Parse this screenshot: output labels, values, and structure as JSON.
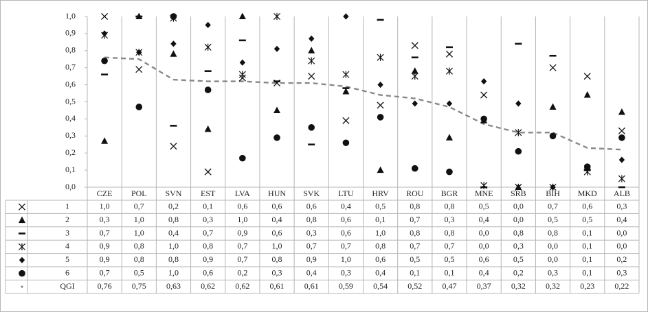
{
  "chart_data": {
    "type": "scatter",
    "categories": [
      "CZE",
      "POL",
      "SVN",
      "EST",
      "LVA",
      "HUN",
      "SVK",
      "LTU",
      "HRV",
      "ROU",
      "BGR",
      "MNE",
      "SRB",
      "BIH",
      "MKD",
      "ALB"
    ],
    "ylim": [
      0,
      1.0
    ],
    "yticks": [
      "0,0",
      "0,1",
      "0,2",
      "0,3",
      "0,4",
      "0,5",
      "0,6",
      "0,7",
      "0,8",
      "0,9",
      "1,0"
    ],
    "grid": "vertical category separators",
    "legend": "data table below chart",
    "series": [
      {
        "name": "1",
        "marker": "x",
        "values": [
          1.0,
          0.69,
          0.24,
          0.09,
          0.64,
          0.61,
          0.65,
          0.39,
          0.48,
          0.83,
          0.78,
          0.54,
          0.0,
          0.7,
          0.65,
          0.33
        ],
        "table": [
          "1,0",
          "0,7",
          "0,2",
          "0,1",
          "0,6",
          "0,6",
          "0,6",
          "0,4",
          "0,5",
          "0,8",
          "0,8",
          "0,5",
          "0,0",
          "0,7",
          "0,6",
          "0,3"
        ]
      },
      {
        "name": "2",
        "marker": "triangle",
        "values": [
          0.27,
          1.0,
          0.78,
          0.34,
          1.0,
          0.45,
          0.8,
          0.56,
          0.1,
          0.68,
          0.29,
          0.39,
          0.0,
          0.47,
          0.54,
          0.44
        ],
        "table": [
          "0,3",
          "1,0",
          "0,8",
          "0,3",
          "1,0",
          "0,4",
          "0,8",
          "0,6",
          "0,1",
          "0,7",
          "0,3",
          "0,4",
          "0,0",
          "0,5",
          "0,5",
          "0,4"
        ]
      },
      {
        "name": "3",
        "marker": "dash",
        "values": [
          0.66,
          1.0,
          0.36,
          0.68,
          0.86,
          0.62,
          0.25,
          0.58,
          0.98,
          0.76,
          0.82,
          0.0,
          0.84,
          0.77,
          0.1,
          0.0
        ],
        "table": [
          "0,7",
          "1,0",
          "0,4",
          "0,7",
          "0,9",
          "0,6",
          "0,3",
          "0,6",
          "1,0",
          "0,8",
          "0,8",
          "0,0",
          "0,8",
          "0,8",
          "0,1",
          "0,0"
        ]
      },
      {
        "name": "4",
        "marker": "star",
        "values": [
          0.89,
          0.79,
          0.99,
          0.82,
          0.66,
          1.0,
          0.74,
          0.66,
          0.76,
          0.65,
          0.68,
          0.01,
          0.32,
          0.0,
          0.09,
          0.05
        ],
        "table": [
          "0,9",
          "0,8",
          "1,0",
          "0,8",
          "0,7",
          "1,0",
          "0,7",
          "0,7",
          "0,8",
          "0,7",
          "0,7",
          "0,0",
          "0,3",
          "0,0",
          "0,1",
          "0,0"
        ]
      },
      {
        "name": "5",
        "marker": "diamond",
        "values": [
          0.9,
          0.79,
          0.84,
          0.95,
          0.73,
          0.81,
          0.87,
          1.0,
          0.6,
          0.49,
          0.49,
          0.62,
          0.49,
          0.0,
          0.11,
          0.16
        ],
        "table": [
          "0,9",
          "0,8",
          "0,8",
          "0,9",
          "0,7",
          "0,8",
          "0,9",
          "1,0",
          "0,6",
          "0,5",
          "0,5",
          "0,6",
          "0,5",
          "0,0",
          "0,1",
          "0,2"
        ]
      },
      {
        "name": "6",
        "marker": "circle",
        "values": [
          0.74,
          0.47,
          1.0,
          0.57,
          0.17,
          0.29,
          0.35,
          0.26,
          0.41,
          0.11,
          0.09,
          0.4,
          0.21,
          0.3,
          0.12,
          0.29
        ],
        "table": [
          "0,7",
          "0,5",
          "1,0",
          "0,6",
          "0,2",
          "0,3",
          "0,4",
          "0,3",
          "0,4",
          "0,1",
          "0,1",
          "0,4",
          "0,2",
          "0,3",
          "0,1",
          "0,3"
        ]
      },
      {
        "name": "QGI",
        "marker": "dashed-line",
        "values": [
          0.76,
          0.75,
          0.63,
          0.62,
          0.62,
          0.61,
          0.61,
          0.59,
          0.54,
          0.52,
          0.47,
          0.37,
          0.32,
          0.32,
          0.23,
          0.22
        ],
        "table": [
          "0,76",
          "0,75",
          "0,63",
          "0,62",
          "0,62",
          "0,61",
          "0,61",
          "0,59",
          "0,54",
          "0,52",
          "0,47",
          "0,37",
          "0,32",
          "0,32",
          "0,23",
          "0,22"
        ]
      }
    ],
    "colors": {
      "markers": "#111111",
      "qgi_line": "#888888",
      "grid": "#b5b5b5"
    }
  }
}
